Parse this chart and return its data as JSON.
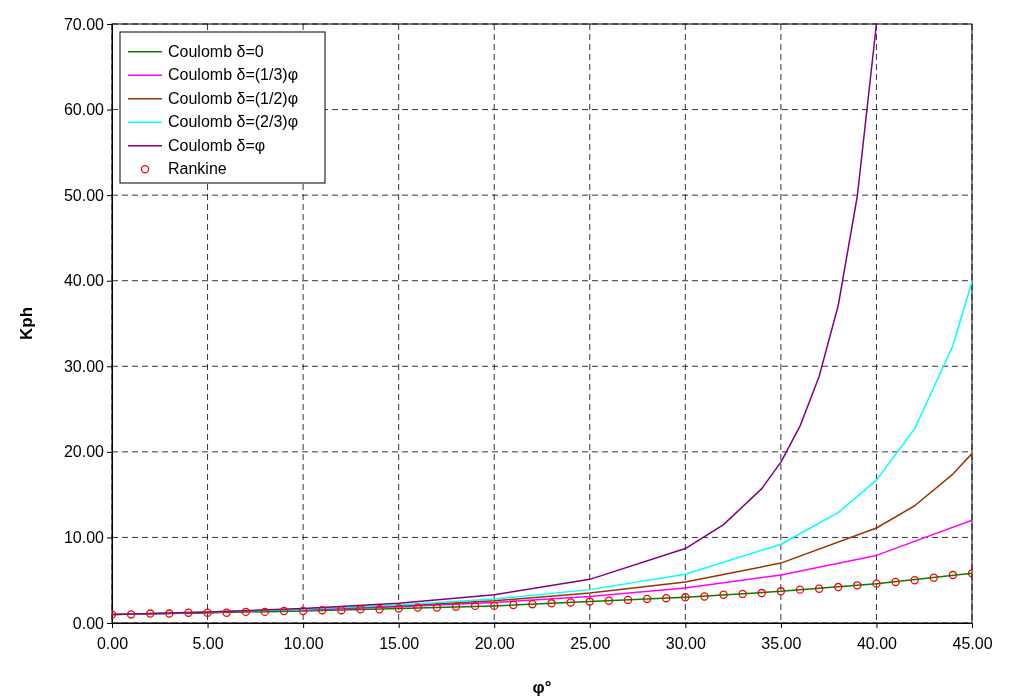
{
  "chart_data": {
    "type": "line",
    "xlabel": "φ°",
    "ylabel": "Kph",
    "xlim": [
      0,
      45
    ],
    "ylim": [
      0,
      70
    ],
    "xticks": [
      {
        "value": 0,
        "label": "0.00"
      },
      {
        "value": 5,
        "label": "5.00"
      },
      {
        "value": 10,
        "label": "10.00"
      },
      {
        "value": 15,
        "label": "15.00"
      },
      {
        "value": 20,
        "label": "20.00"
      },
      {
        "value": 25,
        "label": "25.00"
      },
      {
        "value": 30,
        "label": "30.00"
      },
      {
        "value": 35,
        "label": "35.00"
      },
      {
        "value": 40,
        "label": "40.00"
      },
      {
        "value": 45,
        "label": "45.00"
      }
    ],
    "yticks": [
      {
        "value": 0,
        "label": "0.00"
      },
      {
        "value": 10,
        "label": "10.00"
      },
      {
        "value": 20,
        "label": "20.00"
      },
      {
        "value": 30,
        "label": "30.00"
      },
      {
        "value": 40,
        "label": "40.00"
      },
      {
        "value": 50,
        "label": "50.00"
      },
      {
        "value": 60,
        "label": "60.00"
      },
      {
        "value": 70,
        "label": "70.00"
      }
    ],
    "grid": true,
    "legend": "top left",
    "marker": "none",
    "line_style": "solid",
    "series": [
      {
        "name": "Coulomb δ=0",
        "color": "#008000",
        "x": [
          0,
          5,
          10,
          15,
          20,
          25,
          30,
          35,
          40,
          45
        ],
        "values": [
          1.0,
          1.2,
          1.4,
          1.7,
          2.0,
          2.5,
          3.0,
          3.7,
          4.6,
          5.8
        ]
      },
      {
        "name": "Coulomb δ=(1/3)φ",
        "color": "#ff00ff",
        "x": [
          10,
          15,
          20,
          25,
          30,
          35,
          40,
          45
        ],
        "values": [
          1.5,
          1.9,
          2.4,
          3.1,
          4.1,
          5.6,
          7.9,
          12.0
        ]
      },
      {
        "name": "Coulomb δ=(1/2)φ",
        "color": "#993300",
        "x": [
          0,
          5,
          10,
          15,
          20,
          25,
          30,
          35,
          40,
          42,
          44,
          45
        ],
        "values": [
          1.0,
          1.2,
          1.6,
          2.0,
          2.6,
          3.5,
          4.8,
          7.0,
          11.1,
          13.7,
          17.4,
          19.8
        ]
      },
      {
        "name": "Coulomb δ=(2/3)φ",
        "color": "#00ffff",
        "x": [
          0,
          5,
          10,
          15,
          20,
          25,
          30,
          35,
          38,
          40,
          42,
          44,
          45
        ],
        "values": [
          1.0,
          1.3,
          1.6,
          2.1,
          2.8,
          3.9,
          5.7,
          9.2,
          12.9,
          16.7,
          22.7,
          32.4,
          39.9
        ]
      },
      {
        "name": "Coulomb δ=φ",
        "color": "#800080",
        "x": [
          0,
          5,
          10,
          15,
          20,
          25,
          30,
          32,
          34,
          35,
          36,
          37,
          38,
          39,
          40
        ],
        "values": [
          1.0,
          1.3,
          1.7,
          2.3,
          3.3,
          5.1,
          8.7,
          11.5,
          15.7,
          18.8,
          23.0,
          28.8,
          37.1,
          49.9,
          70.0
        ]
      },
      {
        "name": "Rankine",
        "type": "scatter",
        "marker": "circle",
        "color": "#ff0000",
        "x": [
          0,
          1,
          2,
          3,
          4,
          5,
          6,
          7,
          8,
          9,
          10,
          11,
          12,
          13,
          14,
          15,
          16,
          17,
          18,
          19,
          20,
          21,
          22,
          23,
          24,
          25,
          26,
          27,
          28,
          29,
          30,
          31,
          32,
          33,
          34,
          35,
          36,
          37,
          38,
          39,
          40,
          41,
          42,
          43,
          44,
          45
        ],
        "values": [
          1.0,
          1.0,
          1.1,
          1.1,
          1.2,
          1.2,
          1.2,
          1.3,
          1.3,
          1.4,
          1.4,
          1.5,
          1.5,
          1.6,
          1.6,
          1.7,
          1.8,
          1.8,
          1.9,
          2.0,
          2.0,
          2.1,
          2.2,
          2.3,
          2.4,
          2.5,
          2.6,
          2.7,
          2.8,
          2.9,
          3.0,
          3.1,
          3.3,
          3.4,
          3.5,
          3.7,
          3.9,
          4.0,
          4.2,
          4.4,
          4.6,
          4.8,
          5.0,
          5.3,
          5.6,
          5.8
        ]
      }
    ]
  }
}
